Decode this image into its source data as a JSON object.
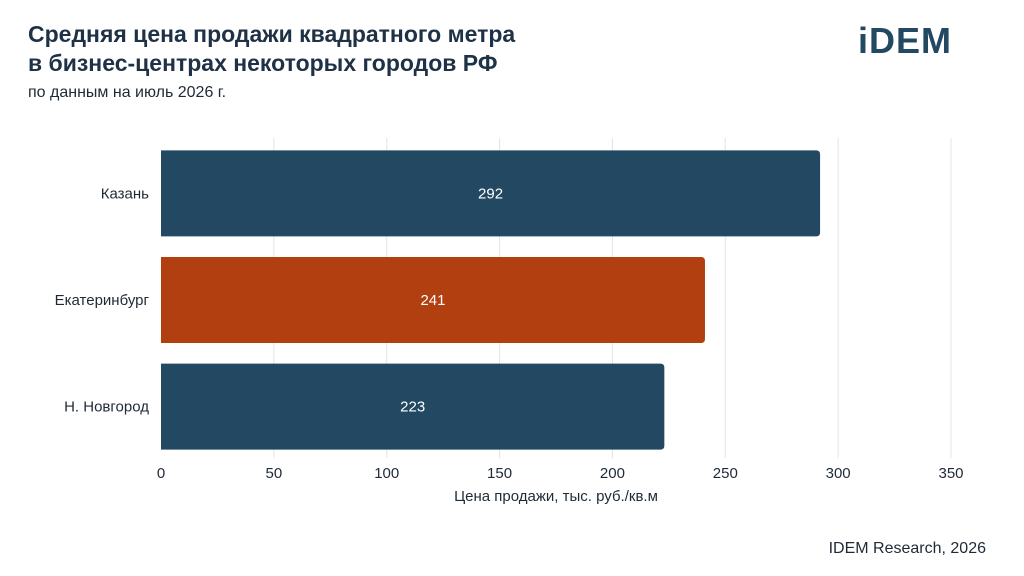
{
  "header": {
    "title_line1": "Средняя цена продажи квадратного метра",
    "title_line2": "в бизнес-центрах некоторых городов РФ",
    "subtitle": "по данным на июль 2026 г.",
    "logo": "iDEM"
  },
  "footer": {
    "source": "IDEM Research, 2026"
  },
  "colors": {
    "primary": "#224862",
    "highlight": "#b13f0f",
    "grid": "#e1e4e7",
    "text": "#1f2a36"
  },
  "chart_data": {
    "type": "bar",
    "orientation": "horizontal",
    "categories": [
      "Казань",
      "Екатеринбург",
      "Н. Новгород"
    ],
    "values": [
      292,
      241,
      223
    ],
    "value_labels": [
      "292",
      "241",
      "223"
    ],
    "highlight_index": 1,
    "xlabel": "Цена продажи, тыс. руб./кв.м",
    "xlim": [
      0,
      350
    ],
    "xticks": [
      0,
      50,
      100,
      150,
      200,
      250,
      300,
      350
    ],
    "xtick_labels": [
      "0",
      "50",
      "100",
      "150",
      "200",
      "250",
      "300",
      "350"
    ],
    "grid": true
  }
}
